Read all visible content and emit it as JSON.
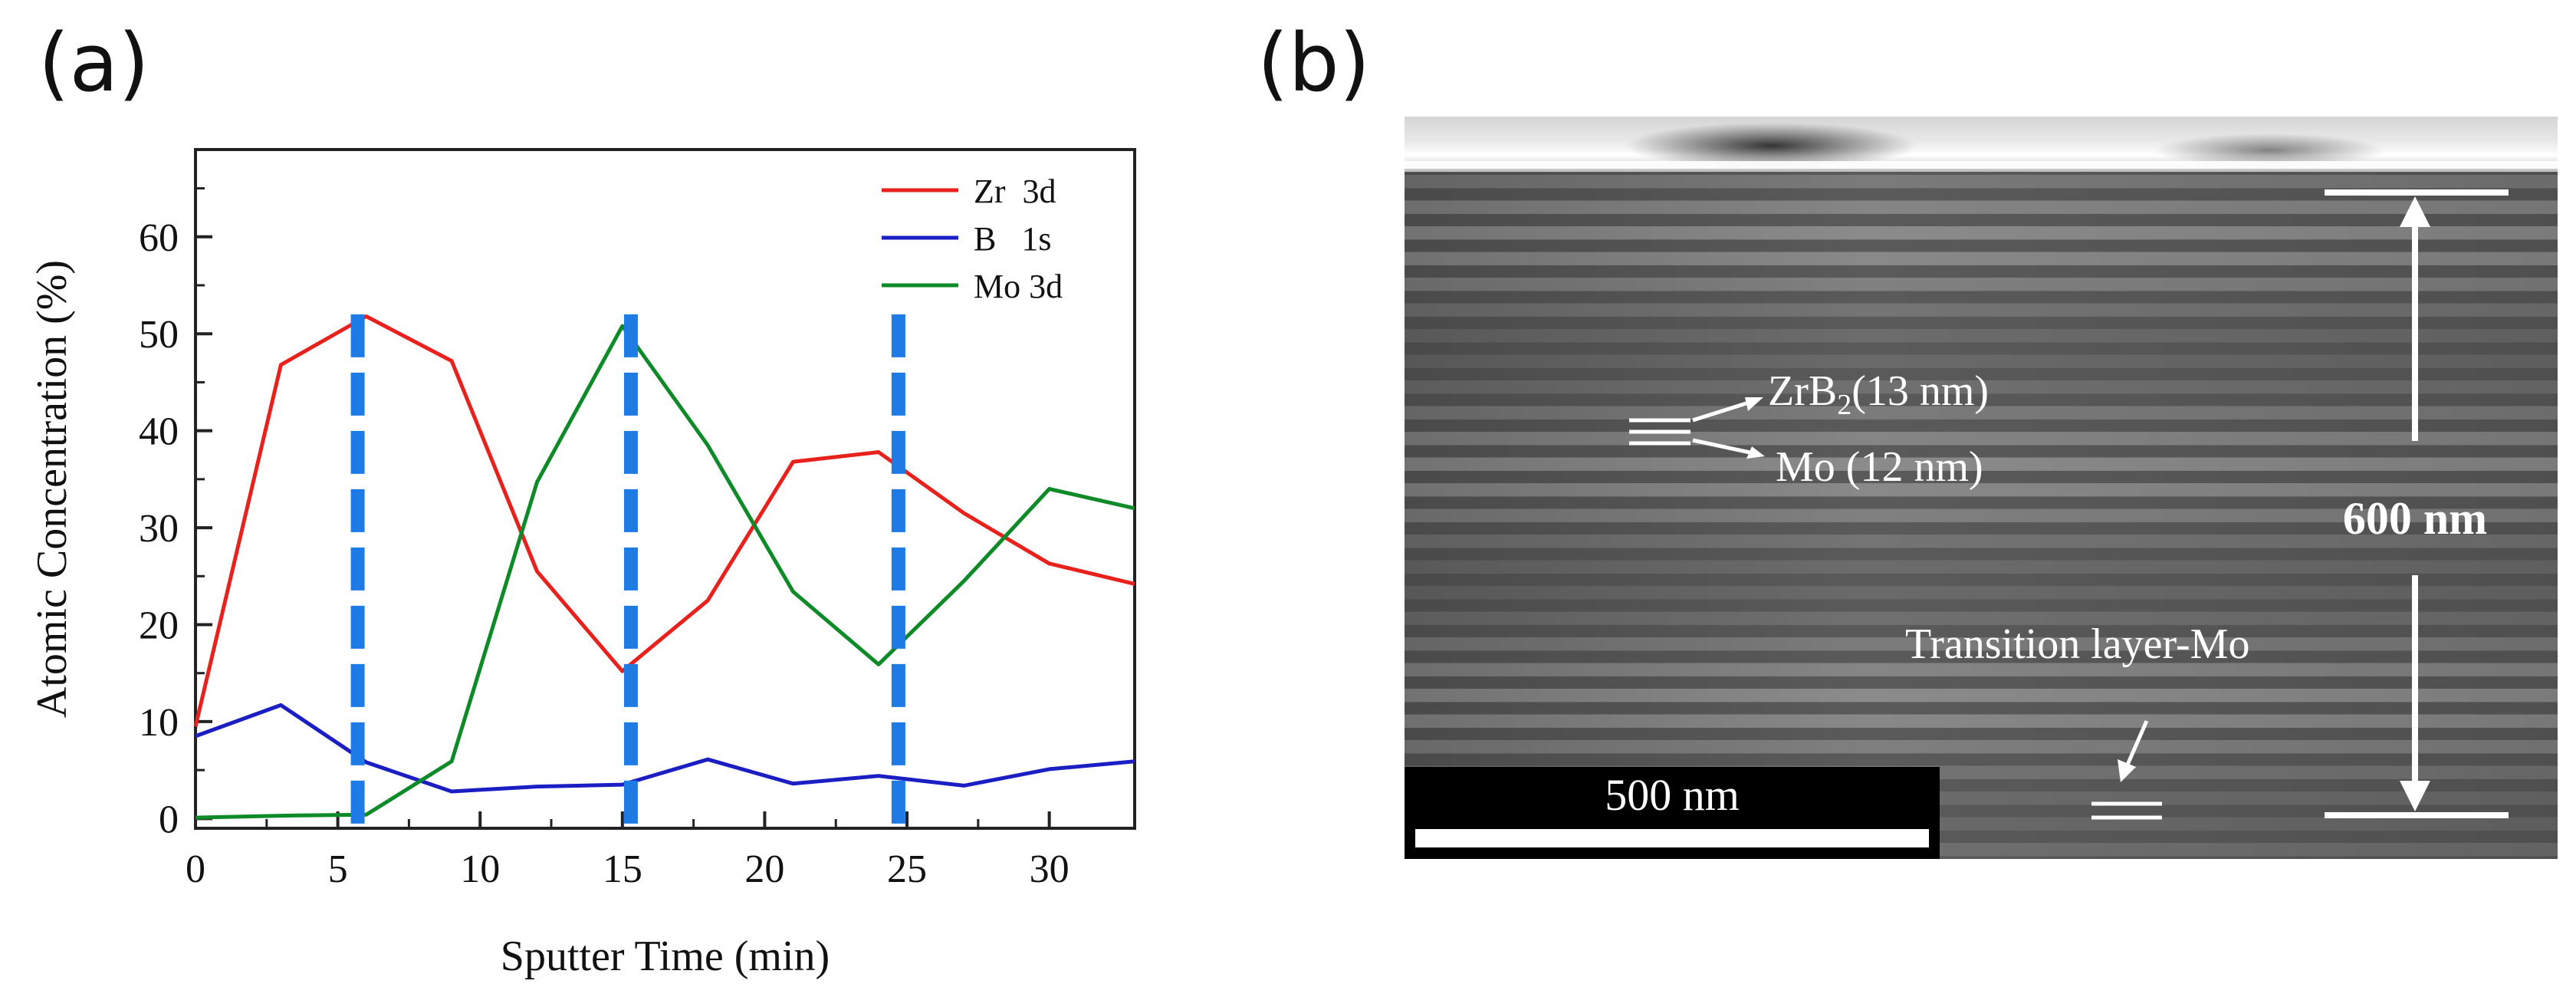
{
  "panel_a": {
    "label": "(a)",
    "chart_data": {
      "type": "line",
      "title": "",
      "xlabel": "Sputter Time (min)",
      "ylabel": "Atomic Concentration (%)",
      "xlim": [
        0,
        33
      ],
      "ylim": [
        -1,
        69
      ],
      "x_ticks": [
        0,
        5,
        10,
        15,
        20,
        25,
        30
      ],
      "y_ticks": [
        0,
        10,
        20,
        30,
        40,
        50,
        60
      ],
      "x_tick_labels": [
        "0",
        "5",
        "10",
        "15",
        "20",
        "25",
        "30"
      ],
      "y_tick_labels": [
        "0",
        "10",
        "20",
        "30",
        "40",
        "50",
        "60"
      ],
      "grid": false,
      "legend_position": "top-right",
      "series": [
        {
          "name": "Zr  3d",
          "color": "#e8211d",
          "x": [
            0,
            3,
            6,
            9,
            12,
            15,
            18,
            21,
            24,
            27,
            30,
            33
          ],
          "values": [
            9.5,
            46.8,
            51.8,
            47.2,
            25.5,
            15.2,
            22.5,
            36.8,
            37.8,
            31.5,
            26.3,
            24.2
          ]
        },
        {
          "name": "B   1s",
          "color": "#1b1ec2",
          "x": [
            0,
            3,
            6,
            9,
            12,
            15,
            18,
            21,
            24,
            27,
            30,
            33
          ],
          "values": [
            8.5,
            11.7,
            5.8,
            2.8,
            3.3,
            3.5,
            6.1,
            3.6,
            4.4,
            3.4,
            5.1,
            5.9
          ]
        },
        {
          "name": "Mo 3d",
          "color": "#0f8a28",
          "x": [
            0,
            3,
            6,
            9,
            12,
            15,
            18,
            21,
            24,
            27,
            30,
            33
          ],
          "values": [
            0.1,
            0.3,
            0.4,
            5.9,
            34.7,
            50.8,
            38.5,
            23.4,
            15.9,
            24.5,
            34.0,
            32.0
          ]
        }
      ],
      "annotations": [
        {
          "type": "dashed-vertical-line",
          "x": 5.7,
          "y_top": 52,
          "color": "#1e7be6"
        },
        {
          "type": "dashed-vertical-line",
          "x": 15.3,
          "y_top": 52,
          "color": "#1e7be6"
        },
        {
          "type": "dashed-vertical-line",
          "x": 24.7,
          "y_top": 52,
          "color": "#1e7be6"
        }
      ]
    }
  },
  "panel_b": {
    "label": "(b)",
    "image_description_kind": "cross-section micrograph",
    "annotations": {
      "zrb2": "ZrB",
      "zrb2_sub": "2",
      "zrb2_thickness": "(13 nm)",
      "mo": "Mo (12 nm)",
      "total_thickness": "600 nm",
      "transition": "Transition layer-Mo",
      "scale_bar": "500 nm"
    },
    "colors": {
      "annotation": "#ffffff",
      "scale_bar_bg": "#000000"
    }
  }
}
